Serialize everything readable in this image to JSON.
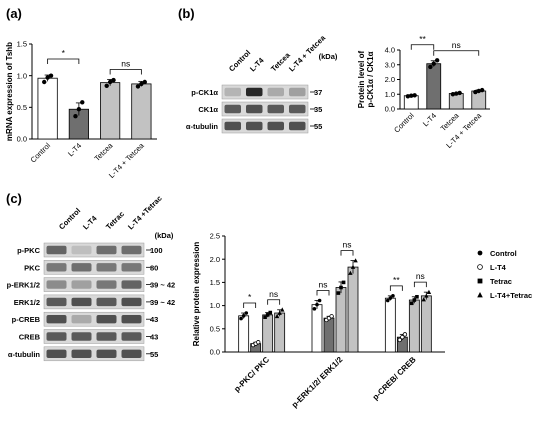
{
  "panel_labels": [
    "(a)",
    "(b)",
    "(c)"
  ],
  "panel_b": {
    "kda_header": "(kDa)",
    "lane_labels": [
      "Control",
      "L-T4",
      "Tetcea",
      "L-T4 + Tetcea"
    ],
    "blots": [
      {
        "name": "p-CK1α",
        "kda": "37"
      },
      {
        "name": "CK1α",
        "kda": "35"
      },
      {
        "name": "α-tubulin",
        "kda": "55"
      }
    ]
  },
  "panel_c": {
    "kda_header": "(kDa)",
    "lane_labels": [
      "Control",
      "L-T4",
      "Tetrac",
      "L-T4 +Tetrac"
    ],
    "blots": [
      {
        "name": "p-PKC",
        "kda": "100"
      },
      {
        "name": "PKC",
        "kda": "80"
      },
      {
        "name": "p-ERK1/2",
        "kda": "39 ~ 42"
      },
      {
        "name": "ERK1/2",
        "kda": "39 ~ 42"
      },
      {
        "name": "p-CREB",
        "kda": "43"
      },
      {
        "name": "CREB",
        "kda": "43"
      },
      {
        "name": "α-tubulin",
        "kda": "55"
      }
    ]
  },
  "chart_data": [
    {
      "id": "a",
      "type": "bar",
      "ylabel": "mRNA expression of Tshb",
      "categories": [
        "Control",
        "L-T4",
        "Tetcea",
        "L-T4 + Tetcea"
      ],
      "values": [
        0.96,
        0.47,
        0.89,
        0.87
      ],
      "errors": [
        0.05,
        0.1,
        0.05,
        0.04
      ],
      "points": [
        [
          0.9,
          0.97,
          1.0
        ],
        [
          0.36,
          0.47,
          0.58
        ],
        [
          0.84,
          0.9,
          0.93
        ],
        [
          0.83,
          0.87,
          0.9
        ]
      ],
      "ylim": [
        0,
        1.5
      ],
      "yticks": [
        0.0,
        0.5,
        1.0,
        1.5
      ],
      "significance": [
        {
          "pair": [
            0,
            1
          ],
          "label": "*"
        },
        {
          "pair": [
            2,
            3
          ],
          "label": "ns"
        }
      ],
      "bar_colors": [
        "#ffffff",
        "#6f6f6f",
        "#c2c2c2",
        "#c2c2c2"
      ]
    },
    {
      "id": "b",
      "type": "bar",
      "ylabel": "Protein level of p-CK1α / CK1α",
      "categories": [
        "Control",
        "L-T4",
        "Tetcea",
        "L-T4 + Tetcea"
      ],
      "values": [
        0.9,
        3.07,
        1.05,
        1.22
      ],
      "errors": [
        0.05,
        0.2,
        0.05,
        0.07
      ],
      "points": [
        [
          0.86,
          0.9,
          0.93
        ],
        [
          2.85,
          3.07,
          3.3
        ],
        [
          1.0,
          1.05,
          1.09
        ],
        [
          1.15,
          1.22,
          1.28
        ]
      ],
      "ylim": [
        0,
        4
      ],
      "yticks": [
        0,
        1,
        2,
        3,
        4
      ],
      "significance": [
        {
          "pair": [
            0,
            1
          ],
          "label": "**"
        },
        {
          "pair": [
            1,
            3
          ],
          "label": "ns"
        }
      ],
      "bar_colors": [
        "#ffffff",
        "#6f6f6f",
        "#c2c2c2",
        "#c2c2c2"
      ]
    },
    {
      "id": "c",
      "type": "bar",
      "ylabel": "Relative protein expression",
      "categories": [
        "p-PKC/ PKC",
        "p-ERK1/2/ ERK1/2",
        "p-CREB/ CREB"
      ],
      "legend": [
        "Control",
        "L-T4",
        "Tetrac",
        "L-T4+Tetrac"
      ],
      "legend_position": "top-right",
      "series": [
        {
          "name": "Control",
          "values": [
            0.78,
            1.02,
            1.16
          ],
          "errors": [
            0.06,
            0.09,
            0.05
          ]
        },
        {
          "name": "L-T4",
          "values": [
            0.18,
            0.73,
            0.32
          ],
          "errors": [
            0.03,
            0.04,
            0.06
          ]
        },
        {
          "name": "Tetrac",
          "values": [
            0.8,
            1.39,
            1.12
          ],
          "errors": [
            0.05,
            0.12,
            0.07
          ]
        },
        {
          "name": "L-T4+Tetrac",
          "values": [
            0.84,
            1.83,
            1.21
          ],
          "errors": [
            0.07,
            0.14,
            0.08
          ]
        }
      ],
      "points": [
        [
          [
            0.72,
            0.78,
            0.84
          ],
          [
            0.15,
            0.18,
            0.21
          ],
          [
            0.75,
            0.8,
            0.85
          ],
          [
            0.77,
            0.84,
            0.91
          ]
        ],
        [
          [
            0.93,
            1.02,
            1.11
          ],
          [
            0.69,
            0.73,
            0.77
          ],
          [
            1.27,
            1.39,
            1.5
          ],
          [
            1.7,
            1.83,
            1.97
          ]
        ],
        [
          [
            1.11,
            1.16,
            1.21
          ],
          [
            0.26,
            0.32,
            0.38
          ],
          [
            1.05,
            1.12,
            1.19
          ],
          [
            1.13,
            1.21,
            1.29
          ]
        ]
      ],
      "ylim": [
        0.0,
        2.5
      ],
      "yticks": [
        0.0,
        0.5,
        1.0,
        1.5,
        2.0,
        2.5
      ],
      "significance": [
        {
          "group": 0,
          "pair": [
            0,
            1
          ],
          "label": "*"
        },
        {
          "group": 0,
          "pair": [
            2,
            3
          ],
          "label": "ns"
        },
        {
          "group": 1,
          "pair": [
            0,
            1
          ],
          "label": "ns"
        },
        {
          "group": 1,
          "pair": [
            2,
            3
          ],
          "label": "ns"
        },
        {
          "group": 2,
          "pair": [
            0,
            1
          ],
          "label": "**"
        },
        {
          "group": 2,
          "pair": [
            2,
            3
          ],
          "label": "ns"
        }
      ],
      "bar_colors": [
        "#ffffff",
        "#6f6f6f",
        "#c2c2c2",
        "#c2c2c2"
      ],
      "marker_shapes": [
        "filled-circle",
        "open-circle",
        "filled-square",
        "filled-triangle"
      ]
    }
  ]
}
